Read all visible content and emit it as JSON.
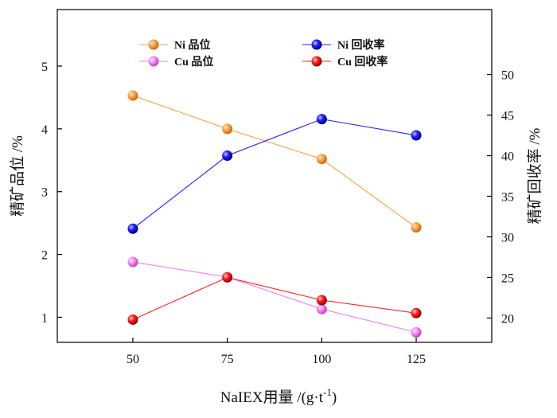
{
  "chart_data": {
    "type": "line",
    "title": "",
    "xlabel": "NaIEX用量 /(g·t",
    "xlabel_superscript": "-1",
    "xlabel_suffix": ")",
    "ylabel_left": "精矿品位 /%",
    "ylabel_right": "精矿回收率 /%",
    "categories": [
      50,
      75,
      100,
      125
    ],
    "xlim": [
      30,
      145
    ],
    "ylim_left": [
      0.6,
      5.9
    ],
    "ylim_right": [
      17,
      58
    ],
    "yticks_left": [
      1,
      2,
      3,
      4,
      5
    ],
    "yticks_right": [
      20,
      25,
      30,
      35,
      40,
      45,
      50
    ],
    "legend_position": "top",
    "grid": false,
    "series": [
      {
        "name": "Ni 品位",
        "axis": "left",
        "color": "#f5a040",
        "values": [
          4.53,
          4.0,
          3.52,
          2.43
        ]
      },
      {
        "name": "Cu 品位",
        "axis": "left",
        "color": "#f080f0",
        "values": [
          1.88,
          1.64,
          1.13,
          0.76
        ]
      },
      {
        "name": "Ni 回收率",
        "axis": "right",
        "color": "#2020ff",
        "values": [
          31.0,
          40.0,
          44.5,
          42.5
        ]
      },
      {
        "name": "Cu 回收率",
        "axis": "right",
        "color": "#ff2020",
        "values": [
          19.8,
          25.0,
          22.2,
          20.6
        ]
      }
    ]
  }
}
